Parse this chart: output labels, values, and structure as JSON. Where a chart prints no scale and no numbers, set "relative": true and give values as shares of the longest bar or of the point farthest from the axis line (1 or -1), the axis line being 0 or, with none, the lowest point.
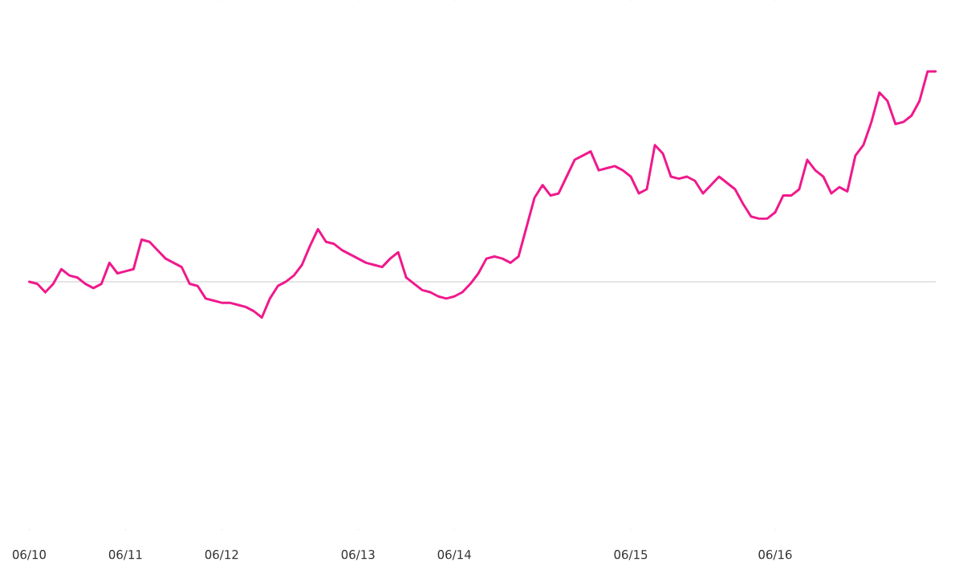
{
  "chart_data": {
    "type": "line",
    "relative": true,
    "categories": [
      "06/10",
      null,
      null,
      null,
      null,
      null,
      null,
      null,
      null,
      null,
      null,
      null,
      "06/11",
      null,
      null,
      null,
      null,
      null,
      null,
      null,
      null,
      null,
      null,
      null,
      "06/12",
      null,
      null,
      null,
      null,
      null,
      null,
      null,
      null,
      null,
      null,
      null,
      null,
      null,
      null,
      null,
      null,
      "06/13",
      null,
      null,
      null,
      null,
      null,
      null,
      null,
      null,
      null,
      null,
      null,
      "06/14",
      null,
      null,
      null,
      null,
      null,
      null,
      null,
      null,
      null,
      null,
      null,
      null,
      null,
      null,
      null,
      null,
      null,
      null,
      null,
      null,
      null,
      "06/15",
      null,
      null,
      null,
      null,
      null,
      null,
      null,
      null,
      null,
      null,
      null,
      null,
      null,
      null,
      null,
      null,
      null,
      "06/16",
      null,
      null,
      null,
      null,
      null,
      null,
      null,
      null,
      null,
      null,
      null,
      null,
      null,
      null,
      null,
      null,
      null,
      null,
      null,
      null
    ],
    "series": [
      {
        "color": "#f0198c",
        "values": [
          0.0,
          -0.01,
          -0.05,
          -0.01,
          0.06,
          0.03,
          0.02,
          -0.01,
          -0.03,
          -0.01,
          0.09,
          0.04,
          0.05,
          0.06,
          0.2,
          0.19,
          0.15,
          0.11,
          0.09,
          0.07,
          -0.01,
          -0.02,
          -0.08,
          -0.09,
          -0.1,
          -0.1,
          -0.11,
          -0.12,
          -0.14,
          -0.17,
          -0.08,
          -0.02,
          0.0,
          0.03,
          0.08,
          0.17,
          0.25,
          0.19,
          0.18,
          0.15,
          0.13,
          0.11,
          0.09,
          0.08,
          0.07,
          0.11,
          0.14,
          0.02,
          -0.01,
          -0.04,
          -0.05,
          -0.07,
          -0.08,
          -0.07,
          -0.05,
          -0.01,
          0.04,
          0.11,
          0.12,
          0.11,
          0.09,
          0.12,
          0.26,
          0.4,
          0.46,
          0.41,
          0.42,
          0.5,
          0.58,
          0.6,
          0.62,
          0.53,
          0.54,
          0.55,
          0.53,
          0.5,
          0.42,
          0.44,
          0.65,
          0.61,
          0.5,
          0.49,
          0.5,
          0.48,
          0.42,
          0.46,
          0.5,
          0.47,
          0.44,
          0.37,
          0.31,
          0.3,
          0.3,
          0.33,
          0.41,
          0.41,
          0.44,
          0.58,
          0.53,
          0.5,
          0.42,
          0.45,
          0.43,
          0.6,
          0.65,
          0.76,
          0.9,
          0.86,
          0.75,
          0.76,
          0.79,
          0.86,
          1.0,
          1.0
        ]
      }
    ],
    "ref_lines": [
      {
        "axis": "y",
        "value": 0,
        "color": "#dddddd"
      }
    ]
  }
}
